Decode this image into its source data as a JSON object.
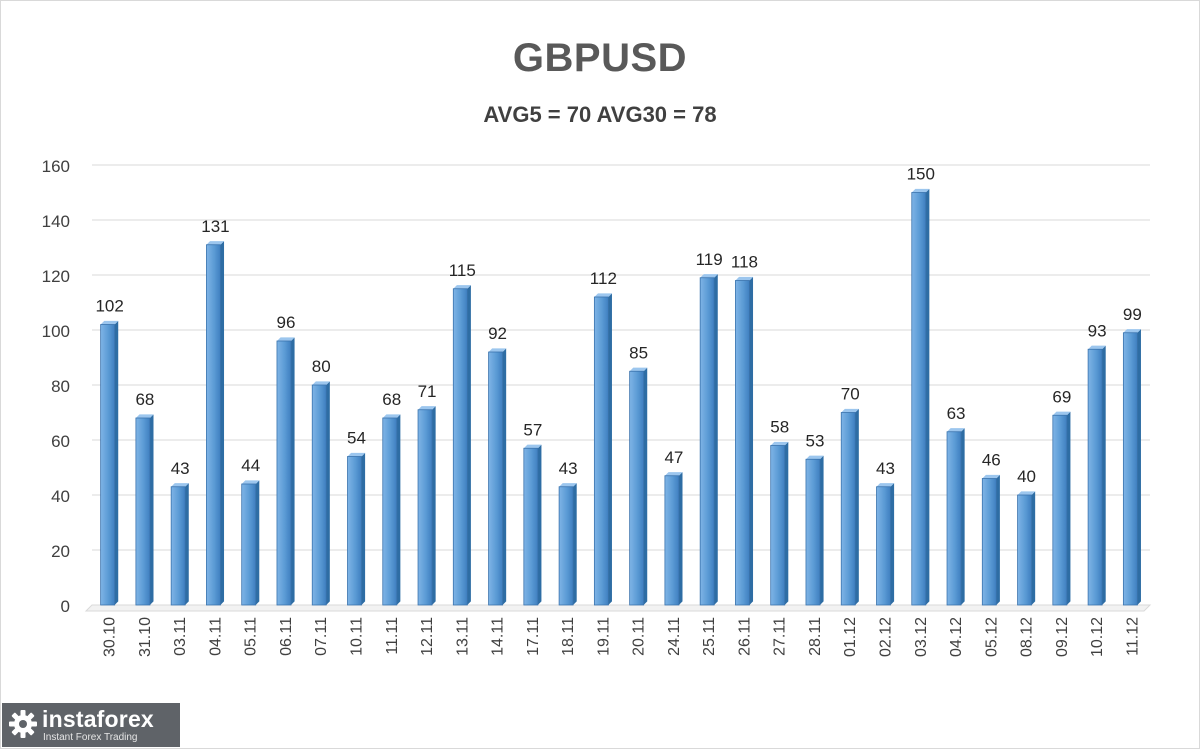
{
  "chart_data": {
    "type": "bar",
    "title": "GBPUSD",
    "subtitle": "AVG5 = 70 AVG30 = 78",
    "categories": [
      "30.10",
      "31.10",
      "03.11",
      "04.11",
      "05.11",
      "06.11",
      "07.11",
      "10.11",
      "11.11",
      "12.11",
      "13.11",
      "14.11",
      "17.11",
      "18.11",
      "19.11",
      "20.11",
      "24.11",
      "25.11",
      "26.11",
      "27.11",
      "28.11",
      "01.12",
      "02.12",
      "03.12",
      "04.12",
      "05.12",
      "08.12",
      "09.12",
      "10.12",
      "11.12"
    ],
    "values": [
      102,
      68,
      43,
      131,
      44,
      96,
      80,
      54,
      68,
      71,
      115,
      92,
      57,
      43,
      112,
      85,
      47,
      119,
      118,
      58,
      53,
      70,
      43,
      150,
      63,
      46,
      40,
      69,
      93,
      99
    ],
    "ylim": [
      0,
      160
    ],
    "yticks": [
      0,
      20,
      40,
      60,
      80,
      100,
      120,
      140,
      160
    ],
    "grid": true,
    "legend": "none",
    "data_labels": true,
    "bar_color": "#5b9bd5",
    "grid_color": "#d9d9d9"
  },
  "logo": {
    "name": "instaforex",
    "tagline": "Instant Forex Trading",
    "icon": "gear-icon"
  }
}
